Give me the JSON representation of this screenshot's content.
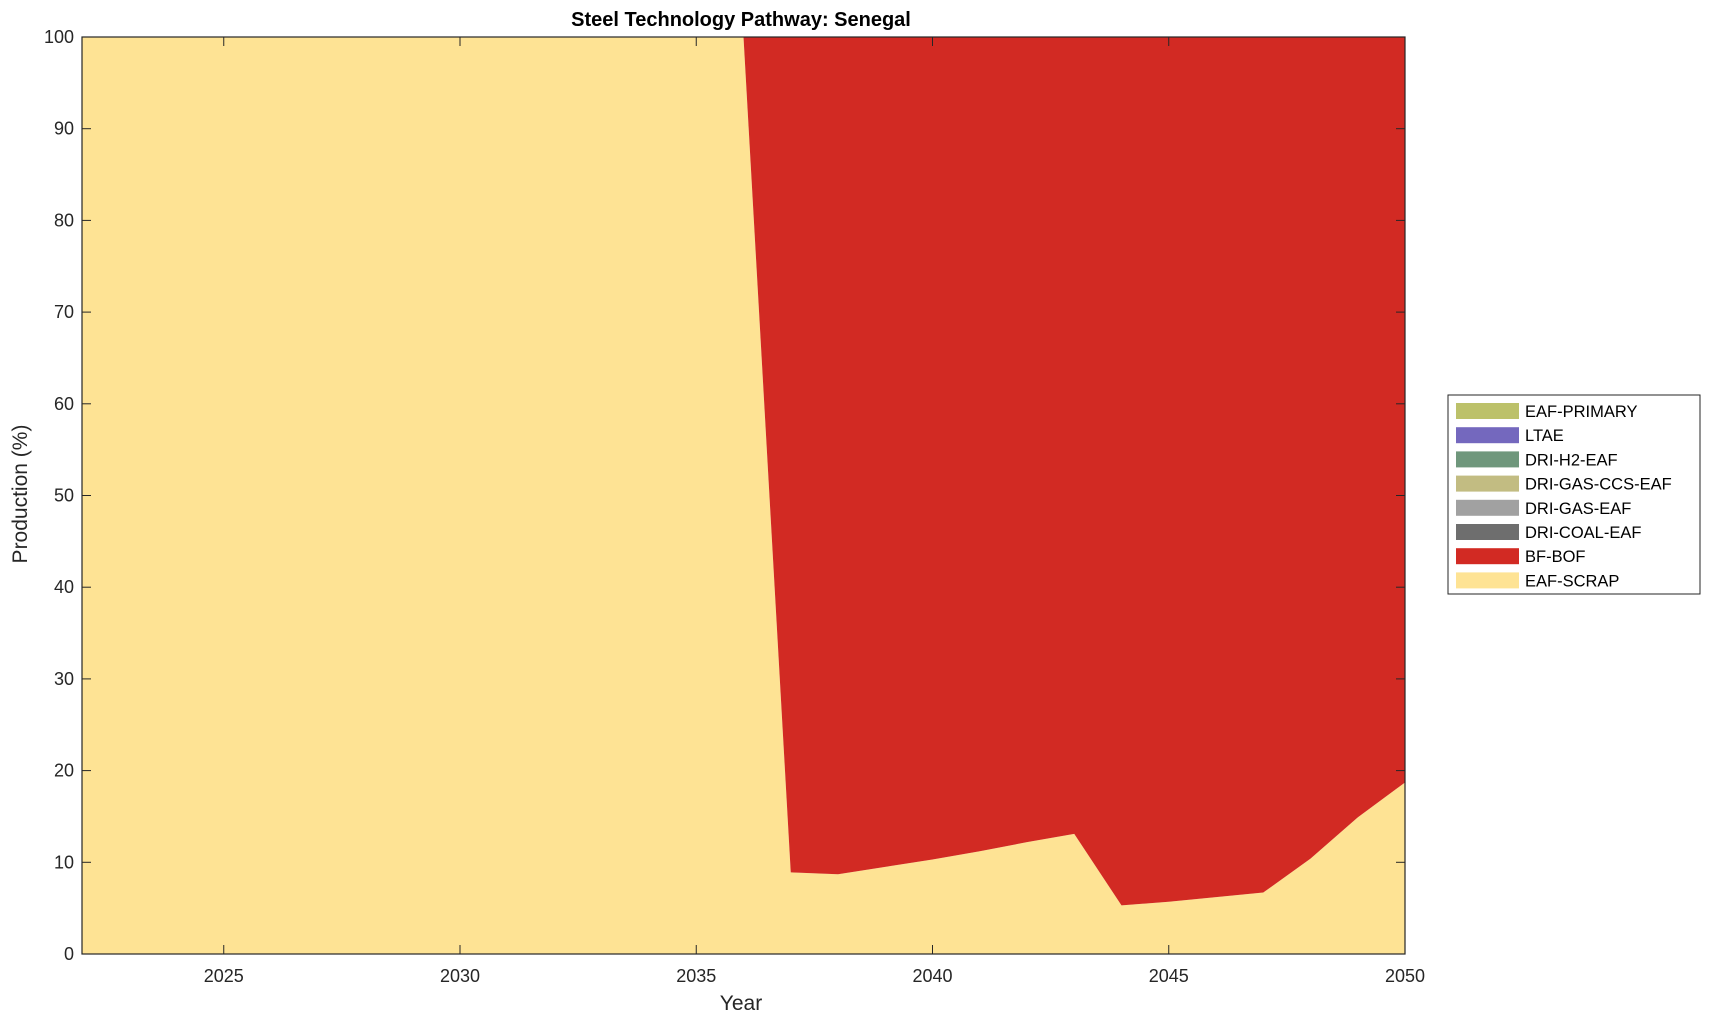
{
  "chart_data": {
    "type": "area",
    "title": "Steel Technology Pathway: Senegal",
    "xlabel": "Year",
    "ylabel": "Production (%)",
    "xlim": [
      2022,
      2050
    ],
    "ylim": [
      0,
      100
    ],
    "xticks": [
      2025,
      2030,
      2035,
      2040,
      2045,
      2050
    ],
    "yticks": [
      0,
      10,
      20,
      30,
      40,
      50,
      60,
      70,
      80,
      90,
      100
    ],
    "x": [
      2022,
      2023,
      2024,
      2025,
      2026,
      2027,
      2028,
      2029,
      2030,
      2031,
      2032,
      2033,
      2034,
      2035,
      2036,
      2037,
      2038,
      2039,
      2040,
      2041,
      2042,
      2043,
      2044,
      2045,
      2046,
      2047,
      2048,
      2049,
      2050
    ],
    "stacked": true,
    "legend_position": "right",
    "grid": false,
    "series": [
      {
        "name": "EAF-SCRAP",
        "color": "#FEE394",
        "values": [
          100,
          100,
          100,
          100,
          100,
          100,
          100,
          100,
          100,
          100,
          100,
          100,
          100,
          100,
          100,
          8.9,
          8.7,
          9.5,
          10.3,
          11.2,
          12.2,
          13.1,
          5.3,
          5.7,
          6.2,
          6.7,
          10.4,
          14.9,
          18.7
        ]
      },
      {
        "name": "BF-BOF",
        "color": "#D22A23",
        "values": [
          0,
          0,
          0,
          0,
          0,
          0,
          0,
          0,
          0,
          0,
          0,
          0,
          0,
          0,
          0,
          91.1,
          91.3,
          90.5,
          89.7,
          88.8,
          87.8,
          86.9,
          94.7,
          94.3,
          93.8,
          93.3,
          89.6,
          85.1,
          81.3
        ]
      },
      {
        "name": "DRI-COAL-EAF",
        "color": "#6E6E6E",
        "values": [
          0,
          0,
          0,
          0,
          0,
          0,
          0,
          0,
          0,
          0,
          0,
          0,
          0,
          0,
          0,
          0,
          0,
          0,
          0,
          0,
          0,
          0,
          0,
          0,
          0,
          0,
          0,
          0,
          0
        ]
      },
      {
        "name": "DRI-GAS-EAF",
        "color": "#A1A1A1",
        "values": [
          0,
          0,
          0,
          0,
          0,
          0,
          0,
          0,
          0,
          0,
          0,
          0,
          0,
          0,
          0,
          0,
          0,
          0,
          0,
          0,
          0,
          0,
          0,
          0,
          0,
          0,
          0,
          0,
          0
        ]
      },
      {
        "name": "DRI-GAS-CCS-EAF",
        "color": "#C2BC82",
        "values": [
          0,
          0,
          0,
          0,
          0,
          0,
          0,
          0,
          0,
          0,
          0,
          0,
          0,
          0,
          0,
          0,
          0,
          0,
          0,
          0,
          0,
          0,
          0,
          0,
          0,
          0,
          0,
          0,
          0
        ]
      },
      {
        "name": "DRI-H2-EAF",
        "color": "#6F977C",
        "values": [
          0,
          0,
          0,
          0,
          0,
          0,
          0,
          0,
          0,
          0,
          0,
          0,
          0,
          0,
          0,
          0,
          0,
          0,
          0,
          0,
          0,
          0,
          0,
          0,
          0,
          0,
          0,
          0,
          0
        ]
      },
      {
        "name": "LTAE",
        "color": "#7468BE",
        "values": [
          0,
          0,
          0,
          0,
          0,
          0,
          0,
          0,
          0,
          0,
          0,
          0,
          0,
          0,
          0,
          0,
          0,
          0,
          0,
          0,
          0,
          0,
          0,
          0,
          0,
          0,
          0,
          0,
          0
        ]
      },
      {
        "name": "EAF-PRIMARY",
        "color": "#BCC16A",
        "values": [
          0,
          0,
          0,
          0,
          0,
          0,
          0,
          0,
          0,
          0,
          0,
          0,
          0,
          0,
          0,
          0,
          0,
          0,
          0,
          0,
          0,
          0,
          0,
          0,
          0,
          0,
          0,
          0,
          0
        ]
      }
    ],
    "legend_order": [
      "EAF-PRIMARY",
      "LTAE",
      "DRI-H2-EAF",
      "DRI-GAS-CCS-EAF",
      "DRI-GAS-EAF",
      "DRI-COAL-EAF",
      "BF-BOF",
      "EAF-SCRAP"
    ]
  }
}
